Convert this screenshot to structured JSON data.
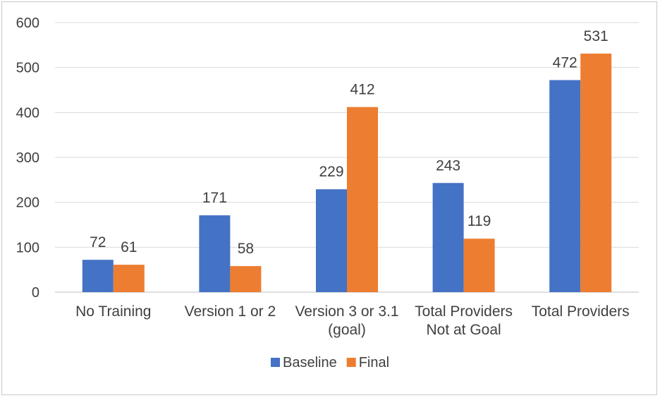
{
  "chart_data": {
    "type": "bar",
    "categories": [
      [
        "No Training"
      ],
      [
        "Version 1 or 2"
      ],
      [
        "Version 3 or 3.1",
        "(goal)"
      ],
      [
        "Total Providers",
        "Not at Goal"
      ],
      [
        "Total Providers"
      ]
    ],
    "series": [
      {
        "name": "Baseline",
        "color": "#4472C4",
        "values": [
          72,
          171,
          229,
          243,
          472
        ]
      },
      {
        "name": "Final",
        "color": "#ED7D31",
        "values": [
          61,
          58,
          412,
          119,
          531
        ]
      }
    ],
    "ylim": [
      0,
      600
    ],
    "yticks": [
      0,
      100,
      200,
      300,
      400,
      500,
      600
    ],
    "grid": true,
    "legend_position": "bottom",
    "title": "",
    "xlabel": "",
    "ylabel": ""
  }
}
